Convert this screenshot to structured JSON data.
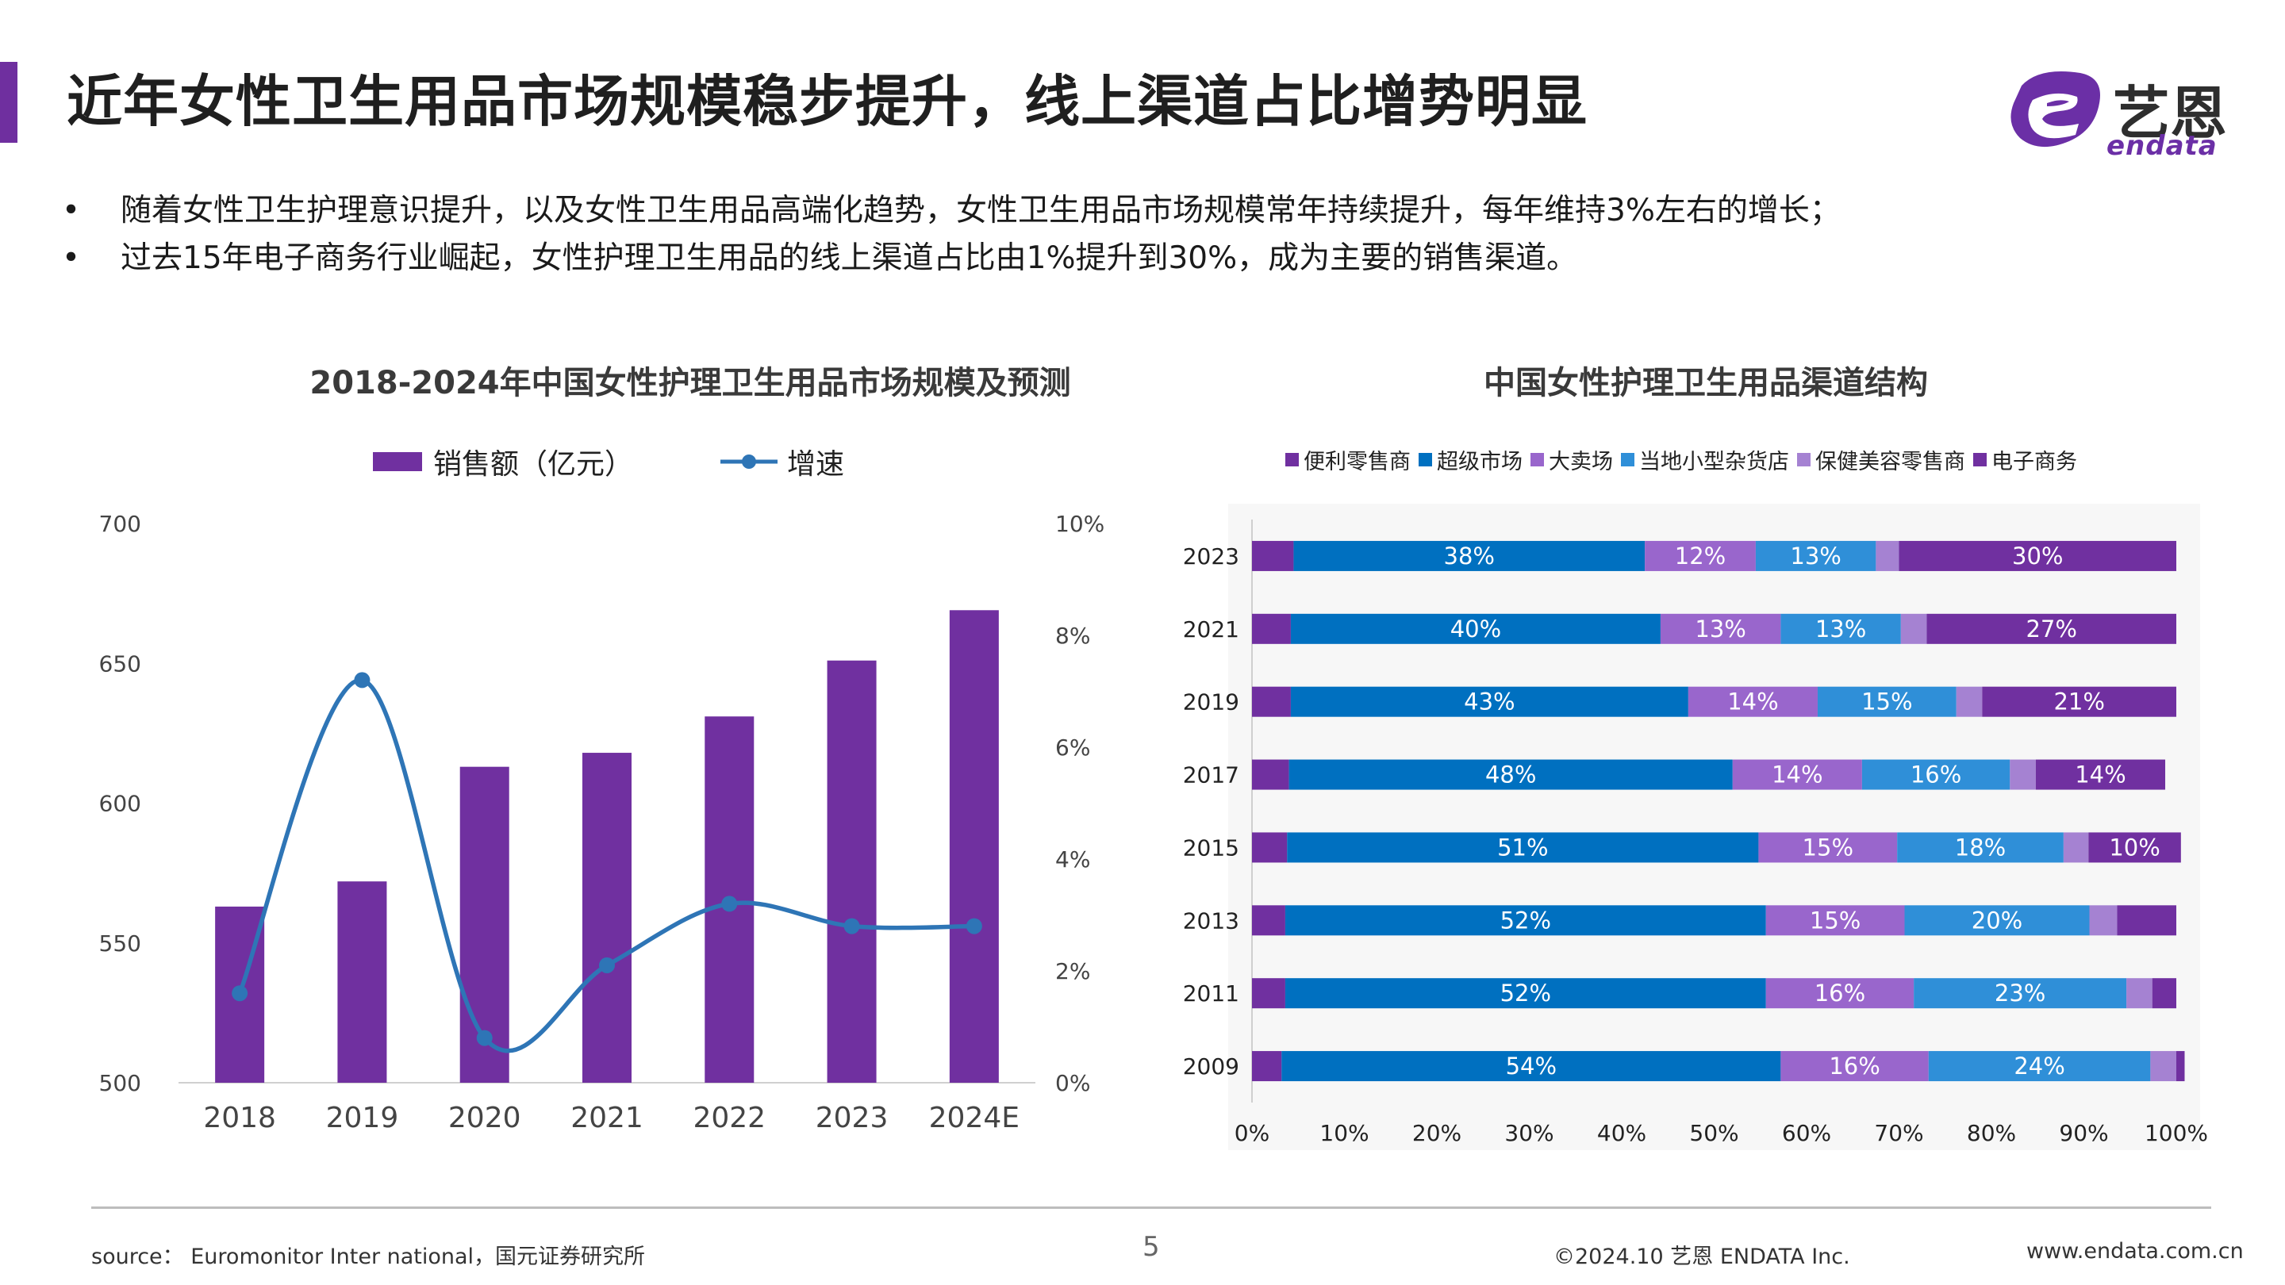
{
  "title": "近年女性卫生用品市场规模稳步提升，线上渠道占比增势明显",
  "logo": {
    "cn": "艺恩",
    "en": "endata"
  },
  "bullets": [
    "随着女性卫生护理意识提升，以及女性卫生用品高端化趋势，女性卫生用品市场规模常年持续提升，每年维持3%左右的增长；",
    "过去15年电子商务行业崛起，女性护理卫生用品的线上渠道占比由1%提升到30%，成为主要的销售渠道。"
  ],
  "bullet_mark": "•",
  "colors": {
    "accent": "#6f2f9f",
    "bar": "#7030a0",
    "line": "#2e75b6",
    "channels": [
      "#7030a0",
      "#0070c0",
      "#9966cc",
      "#2f8fd8",
      "#a582d2",
      "#7030a0"
    ]
  },
  "chart_data": [
    {
      "type": "bar",
      "title": "2018-2024年中国女性护理卫生用品市场规模及预测",
      "categories": [
        "2018",
        "2019",
        "2020",
        "2021",
        "2022",
        "2023",
        "2024E"
      ],
      "series": [
        {
          "name": "销售额（亿元）",
          "type": "bar",
          "axis": "left",
          "values": [
            563,
            572,
            613,
            618,
            631,
            651,
            669
          ]
        },
        {
          "name": "增速",
          "type": "line",
          "axis": "right",
          "values": [
            1.6,
            7.2,
            0.8,
            2.1,
            3.2,
            2.8,
            2.8
          ],
          "unit": "%"
        }
      ],
      "ylim": [
        500,
        700
      ],
      "yticks": [
        "700",
        "650",
        "600",
        "550",
        "500"
      ],
      "y2lim": [
        0,
        10
      ],
      "y2ticks": [
        "10%",
        "8%",
        "6%",
        "4%",
        "2%",
        "0%"
      ],
      "legend": "top",
      "grid": false
    },
    {
      "type": "bar",
      "orientation": "horizontal",
      "stacked": "percent",
      "title": "中国女性护理卫生用品渠道结构",
      "categories": [
        "2023",
        "2021",
        "2019",
        "2017",
        "2015",
        "2013",
        "2011",
        "2009"
      ],
      "series": [
        {
          "name": "便利零售商",
          "values": [
            4.5,
            4.2,
            4.2,
            4.0,
            3.8,
            3.6,
            3.6,
            3.2
          ]
        },
        {
          "name": "超级市场",
          "values": [
            38,
            40,
            43,
            48,
            51,
            52,
            52,
            54
          ]
        },
        {
          "name": "大卖场",
          "values": [
            12,
            13,
            14,
            14,
            15,
            15,
            16,
            16
          ]
        },
        {
          "name": "当地小型杂货店",
          "values": [
            13,
            13,
            15,
            16,
            18,
            20,
            23,
            24
          ]
        },
        {
          "name": "保健美容零售商",
          "values": [
            2.5,
            2.8,
            2.8,
            2.8,
            2.7,
            3.0,
            2.8,
            2.8
          ]
        },
        {
          "name": "电子商务",
          "values": [
            30,
            27,
            21,
            14,
            10,
            6.4,
            2.6,
            0.9
          ]
        }
      ],
      "labels": [
        [
          "",
          "38%",
          "12%",
          "13%",
          "",
          "30%"
        ],
        [
          "",
          "40%",
          "13%",
          "13%",
          "",
          "27%"
        ],
        [
          "",
          "43%",
          "14%",
          "15%",
          "",
          "21%"
        ],
        [
          "",
          "48%",
          "14%",
          "16%",
          "",
          "14%"
        ],
        [
          "",
          "51%",
          "15%",
          "18%",
          "",
          "10%"
        ],
        [
          "",
          "52%",
          "15%",
          "20%",
          "",
          ""
        ],
        [
          "",
          "52%",
          "16%",
          "23%",
          "",
          ""
        ],
        [
          "",
          "54%",
          "16%",
          "24%",
          "",
          ""
        ]
      ],
      "xlim": [
        0,
        100
      ],
      "xticks": [
        "0%",
        "10%",
        "20%",
        "30%",
        "40%",
        "50%",
        "60%",
        "70%",
        "80%",
        "90%",
        "100%"
      ],
      "legend": "top"
    }
  ],
  "footer": {
    "source": "source：  Euromonitor Inter national，国元证券研究所",
    "page": "5",
    "copyright": "©2024.10  艺恩 ENDATA Inc.",
    "website": "www.endata.com.cn"
  }
}
